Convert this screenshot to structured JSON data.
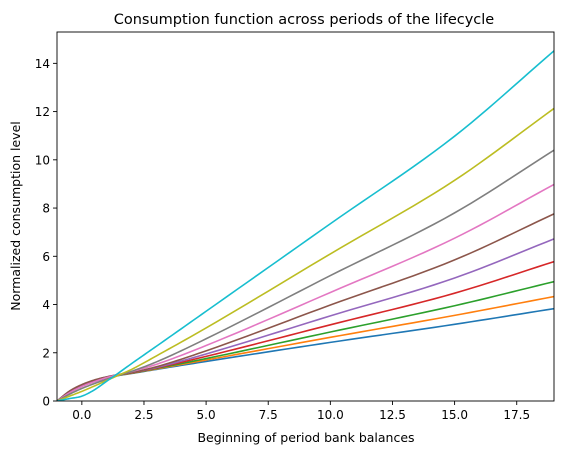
{
  "chart_data": {
    "type": "line",
    "title": "Consumption function across periods of the lifecycle",
    "xlabel": "Beginning of period bank balances",
    "ylabel": "Normalized consumption level",
    "xlim": [
      -1.0,
      19.0
    ],
    "ylim": [
      0,
      15.3
    ],
    "grid": false,
    "legend": "none",
    "x_ticks": [
      0.0,
      2.5,
      5.0,
      7.5,
      10.0,
      12.5,
      15.0,
      17.5
    ],
    "x_tick_labels": [
      "0.0",
      "2.5",
      "5.0",
      "7.5",
      "10.0",
      "12.5",
      "15.0",
      "17.5"
    ],
    "y_ticks": [
      0,
      2,
      4,
      6,
      8,
      10,
      12,
      14
    ],
    "y_tick_labels": [
      "0",
      "2",
      "4",
      "6",
      "8",
      "10",
      "12",
      "14"
    ],
    "series": [
      {
        "color": "#1f77b4",
        "x": [
          -1.0,
          -0.5,
          0.0,
          0.5,
          1.0,
          1.5,
          2.0,
          3.0,
          5.0,
          10.0,
          15.0,
          19.0
        ],
        "y": [
          0.0,
          0.36,
          0.62,
          0.8,
          0.95,
          1.06,
          1.14,
          1.31,
          1.64,
          2.43,
          3.18,
          3.83
        ]
      },
      {
        "color": "#ff7f0e",
        "x": [
          -1.0,
          -0.5,
          0.0,
          0.5,
          1.0,
          1.5,
          2.0,
          3.0,
          5.0,
          10.0,
          15.0,
          19.0
        ],
        "y": [
          0.0,
          0.37,
          0.64,
          0.82,
          0.97,
          1.07,
          1.15,
          1.33,
          1.7,
          2.64,
          3.55,
          4.33
        ]
      },
      {
        "color": "#2ca02c",
        "x": [
          -1.0,
          -0.5,
          0.0,
          0.5,
          1.0,
          1.5,
          2.0,
          3.0,
          5.0,
          10.0,
          15.0,
          19.0
        ],
        "y": [
          0.0,
          0.38,
          0.65,
          0.84,
          0.98,
          1.08,
          1.16,
          1.35,
          1.76,
          2.86,
          3.95,
          4.95
        ]
      },
      {
        "color": "#d62728",
        "x": [
          -1.0,
          -0.5,
          0.0,
          0.5,
          1.0,
          1.5,
          2.0,
          3.0,
          5.0,
          10.0,
          15.0,
          19.0
        ],
        "y": [
          0.0,
          0.39,
          0.66,
          0.85,
          0.99,
          1.09,
          1.17,
          1.37,
          1.85,
          3.16,
          4.47,
          5.78
        ]
      },
      {
        "color": "#9467bd",
        "x": [
          -1.0,
          -0.5,
          0.0,
          0.5,
          1.0,
          1.5,
          2.0,
          3.0,
          5.0,
          10.0,
          15.0,
          19.0
        ],
        "y": [
          0.0,
          0.4,
          0.67,
          0.86,
          1.0,
          1.1,
          1.18,
          1.39,
          1.95,
          3.53,
          5.1,
          6.72
        ]
      },
      {
        "color": "#8c564b",
        "x": [
          -1.0,
          -0.5,
          0.0,
          0.5,
          1.0,
          1.5,
          2.0,
          3.0,
          5.0,
          10.0,
          15.0,
          19.0
        ],
        "y": [
          0.0,
          0.41,
          0.68,
          0.87,
          1.0,
          1.1,
          1.18,
          1.42,
          2.08,
          3.98,
          5.85,
          7.76
        ]
      },
      {
        "color": "#e377c2",
        "x": [
          -1.0,
          -0.5,
          0.0,
          0.5,
          1.0,
          1.5,
          2.0,
          3.0,
          5.0,
          10.0,
          15.0,
          19.0
        ],
        "y": [
          0.0,
          0.34,
          0.6,
          0.8,
          0.97,
          1.1,
          1.22,
          1.52,
          2.3,
          4.5,
          6.75,
          8.98
        ]
      },
      {
        "color": "#7f7f7f",
        "x": [
          -1.0,
          -0.5,
          0.0,
          0.5,
          1.0,
          1.5,
          2.0,
          3.0,
          5.0,
          10.0,
          15.0,
          19.0
        ],
        "y": [
          0.0,
          0.28,
          0.52,
          0.72,
          0.9,
          1.07,
          1.23,
          1.62,
          2.58,
          5.2,
          7.8,
          10.4
        ]
      },
      {
        "color": "#bcbd22",
        "x": [
          -1.0,
          -0.5,
          0.0,
          0.5,
          1.0,
          1.5,
          2.0,
          3.0,
          5.0,
          10.0,
          15.0,
          19.0
        ],
        "y": [
          0.0,
          0.2,
          0.4,
          0.62,
          0.85,
          1.08,
          1.31,
          1.87,
          3.03,
          6.1,
          9.15,
          12.13
        ]
      },
      {
        "color": "#17becf",
        "x": [
          -1.0,
          -0.5,
          0.0,
          0.5,
          1.0,
          1.5,
          2.0,
          3.0,
          5.0,
          10.0,
          15.0,
          19.0
        ],
        "y": [
          0.0,
          0.1,
          0.2,
          0.46,
          0.82,
          1.18,
          1.55,
          2.27,
          3.72,
          7.35,
          10.98,
          14.52
        ]
      }
    ]
  }
}
